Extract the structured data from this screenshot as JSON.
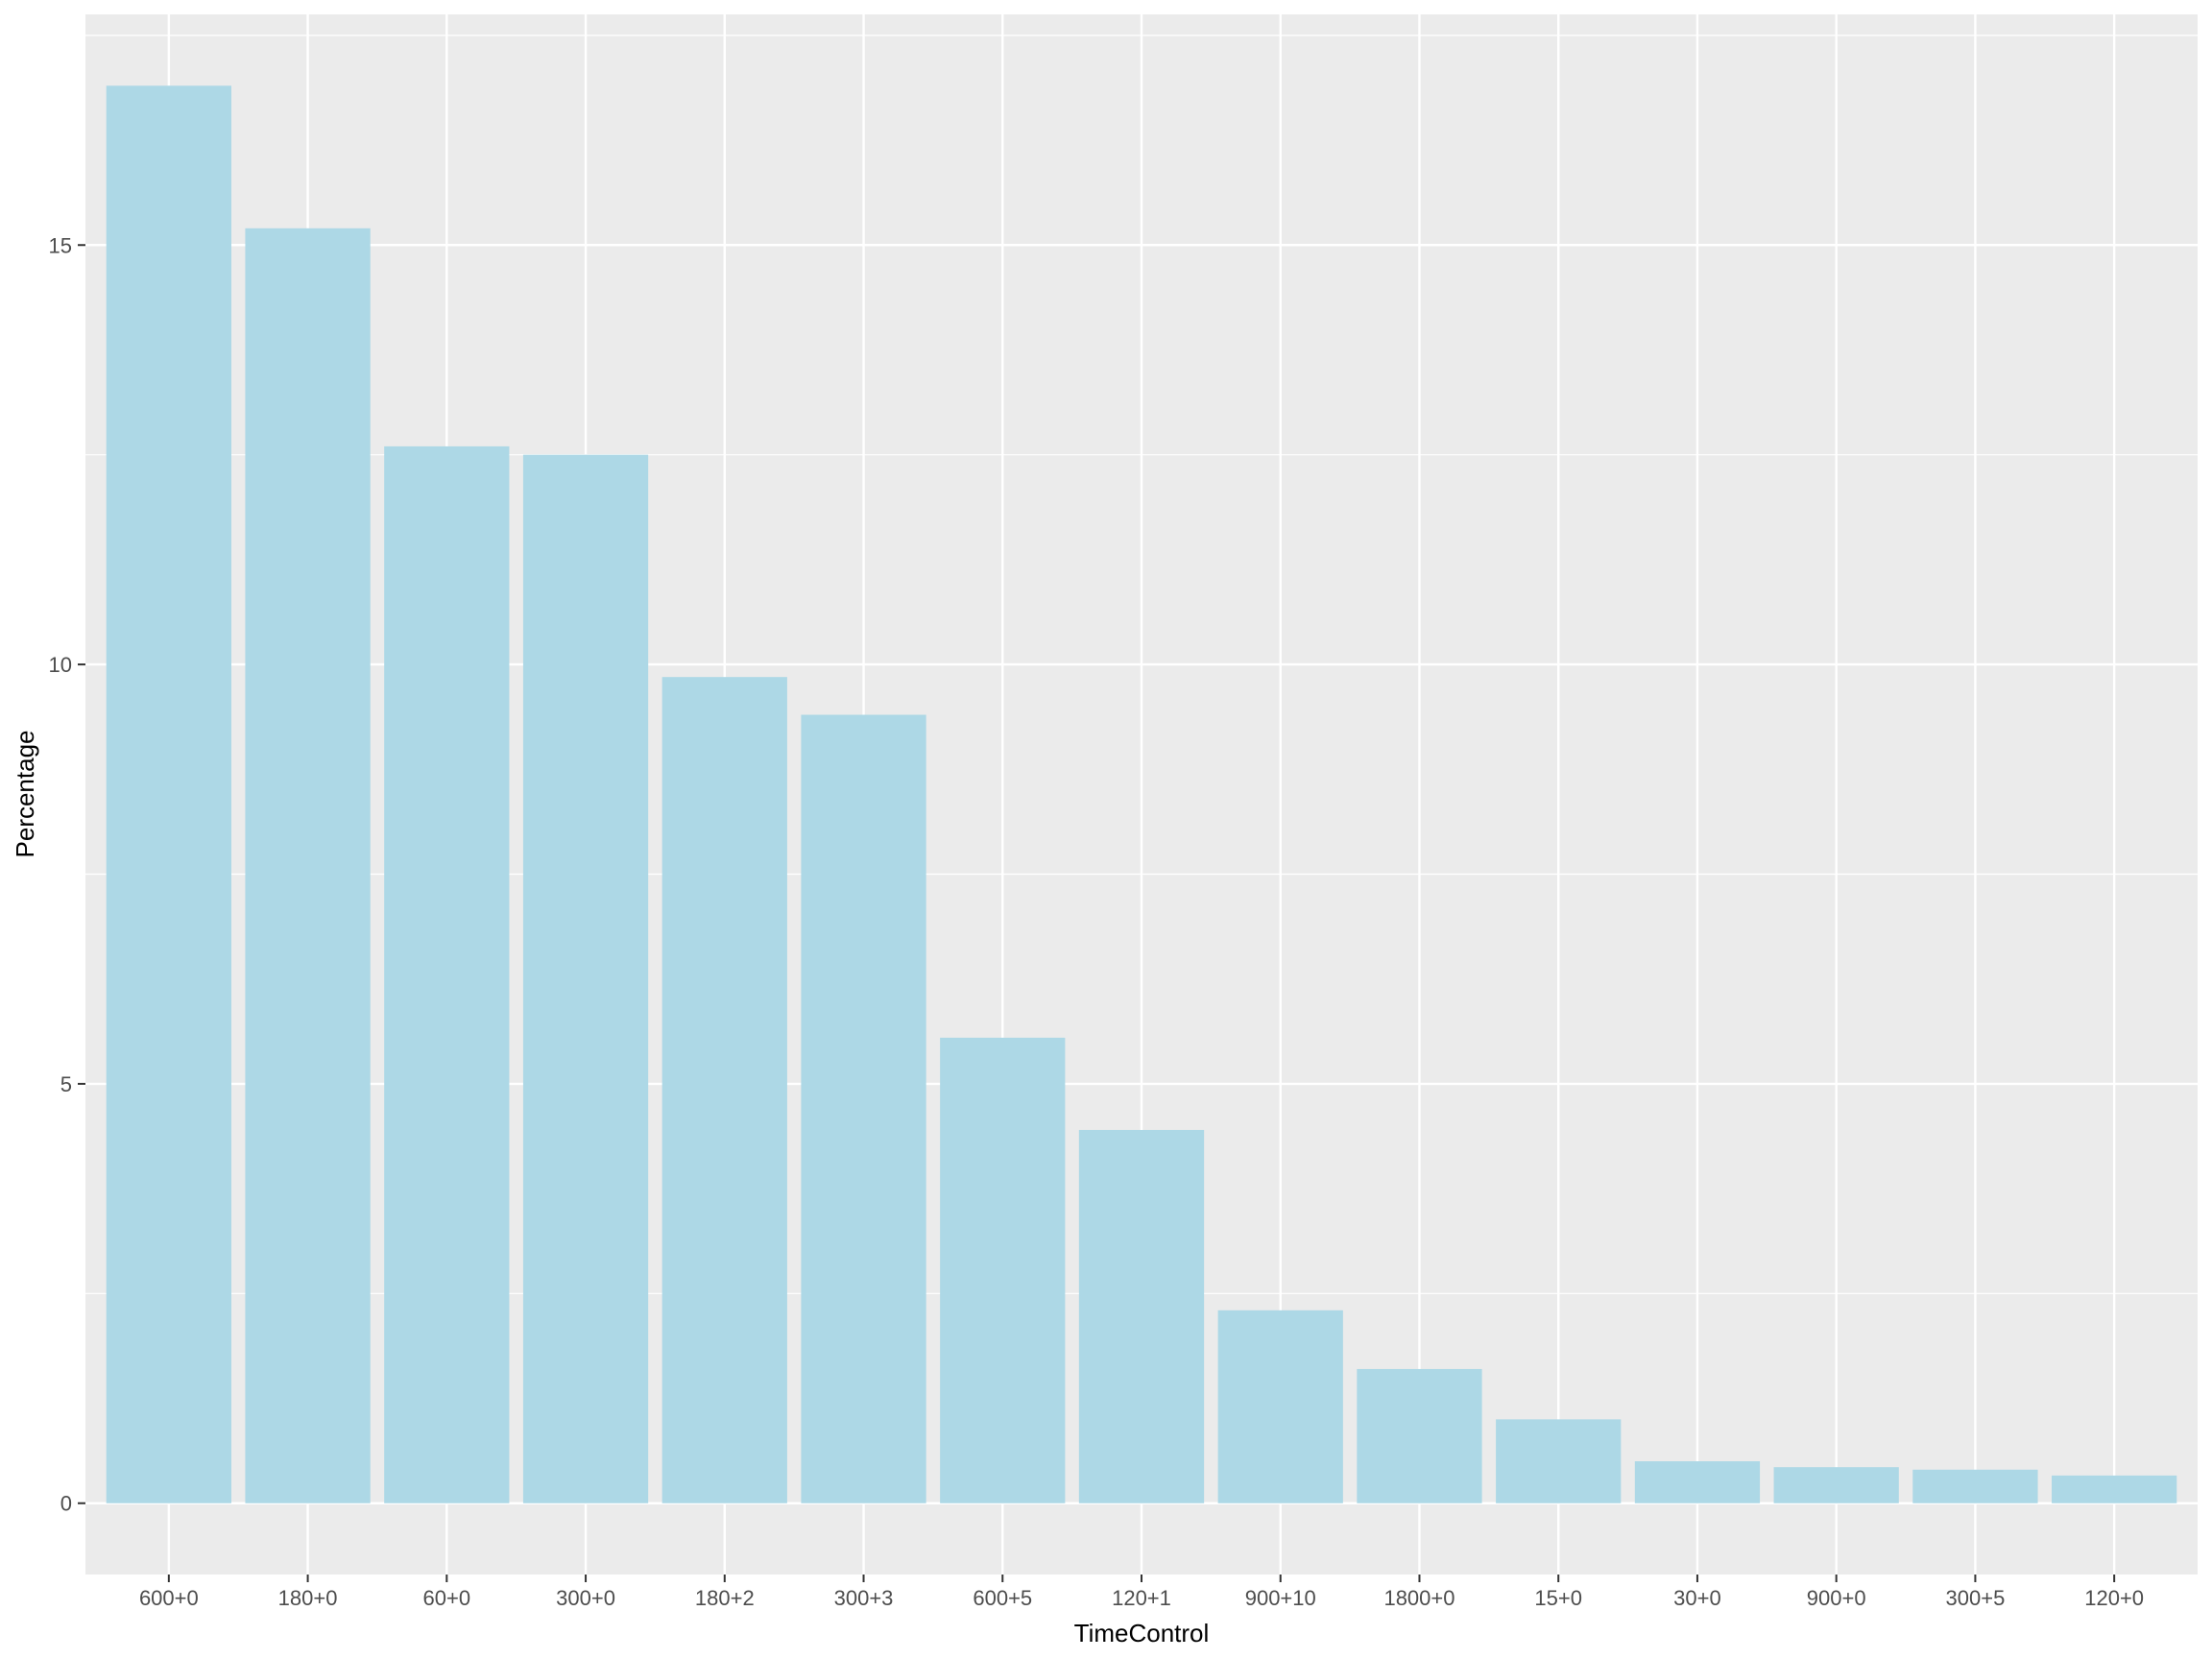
{
  "chart_data": {
    "type": "bar",
    "categories": [
      "600+0",
      "180+0",
      "60+0",
      "300+0",
      "180+2",
      "300+3",
      "600+5",
      "120+1",
      "900+10",
      "1800+0",
      "15+0",
      "30+0",
      "900+0",
      "300+5",
      "120+0"
    ],
    "values": [
      16.9,
      15.2,
      12.6,
      12.5,
      9.85,
      9.4,
      5.55,
      4.45,
      2.3,
      1.6,
      1.0,
      0.5,
      0.43,
      0.4,
      0.33
    ],
    "xlabel": "TimeControl",
    "ylabel": "Percentage",
    "ylim": [
      -0.85,
      17.75
    ],
    "yticks": [
      0,
      5,
      10,
      15
    ],
    "ytick_labels": [
      "0",
      "5",
      "10",
      "15"
    ],
    "grid": true,
    "colors": {
      "bar": "#add8e6",
      "panel": "#ebebeb",
      "grid": "#ffffff",
      "tick_text": "#4d4d4d",
      "axis_text": "#000000"
    }
  }
}
